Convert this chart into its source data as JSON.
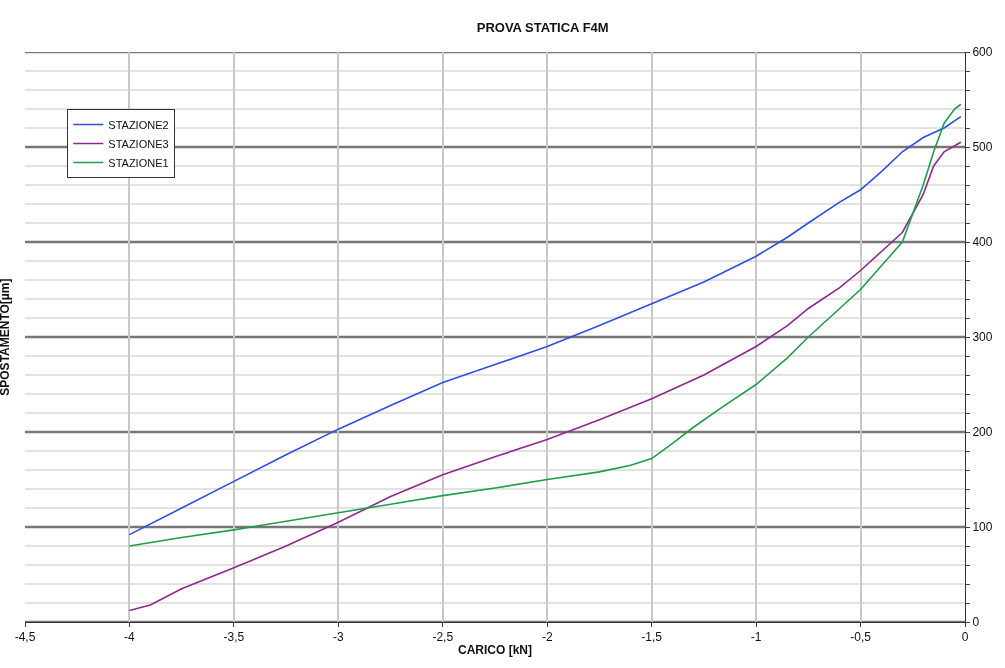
{
  "chart_data": {
    "type": "line",
    "title": "PROVA STATICA F4M",
    "xlabel": "CARICO [kN]",
    "ylabel": "SPOSTAMENTO[µm]",
    "xlim": [
      -4.5,
      0
    ],
    "xticks": [
      {
        "value": -4.5,
        "label": "-4,5"
      },
      -4,
      {
        "value": -3.5,
        "label": "-3,5"
      },
      -3,
      {
        "value": -2.5,
        "label": "-2,5"
      },
      -2,
      {
        "value": -1.5,
        "label": "-1,5"
      },
      -1,
      {
        "value": -0.5,
        "label": "-0,5"
      },
      0
    ],
    "ylim": [
      0,
      600
    ],
    "yticks": [
      0,
      {
        "value": 20,
        "label": null
      },
      {
        "value": 40,
        "label": null
      },
      {
        "value": 60,
        "label": null
      },
      {
        "value": 80,
        "label": null
      },
      100,
      {
        "value": 120,
        "label": null
      },
      {
        "value": 140,
        "label": null
      },
      {
        "value": 160,
        "label": null
      },
      {
        "value": 180,
        "label": null
      },
      200,
      {
        "value": 220,
        "label": null
      },
      {
        "value": 240,
        "label": null
      },
      {
        "value": 260,
        "label": null
      },
      {
        "value": 280,
        "label": null
      },
      300,
      {
        "value": 320,
        "label": null
      },
      {
        "value": 340,
        "label": null
      },
      {
        "value": 360,
        "label": null
      },
      {
        "value": 380,
        "label": null
      },
      400,
      {
        "value": 420,
        "label": null
      },
      {
        "value": 440,
        "label": null
      },
      {
        "value": 460,
        "label": null
      },
      {
        "value": 480,
        "label": null
      },
      500,
      {
        "value": 520,
        "label": null
      },
      {
        "value": 540,
        "label": null
      },
      {
        "value": 560,
        "label": null
      },
      {
        "value": 580,
        "label": null
      },
      600
    ],
    "grid": true,
    "legend": "top left",
    "marker": "none",
    "line_style": "solid",
    "series": [
      {
        "name": "STAZIONE2",
        "color": "#2e4fe0",
        "x": [
          -4,
          -3.75,
          -3.5,
          -3.25,
          -3,
          -2.75,
          -2.5,
          -2.25,
          -2,
          -1.75,
          -1.5,
          -1.25,
          -1,
          -0.85,
          -0.75,
          -0.6,
          -0.5,
          -0.4,
          -0.3,
          -0.2,
          -0.1,
          -0.02
        ],
        "values": [
          92,
          120,
          148,
          176,
          203,
          228,
          252,
          271,
          290,
          312,
          335,
          358,
          385,
          405,
          420,
          442,
          455,
          474,
          495,
          510,
          520,
          532
        ]
      },
      {
        "name": "STAZIONE3",
        "color": "#8b2a8e",
        "x": [
          -4,
          -3.9,
          -3.75,
          -3.5,
          -3.25,
          -3,
          -2.75,
          -2.5,
          -2.25,
          -2,
          -1.75,
          -1.5,
          -1.25,
          -1,
          -0.85,
          -0.75,
          -0.6,
          -0.5,
          -0.4,
          -0.3,
          -0.2,
          -0.15,
          -0.1,
          -0.02
        ],
        "values": [
          12,
          18,
          35,
          57,
          80,
          105,
          132,
          155,
          174,
          192,
          213,
          235,
          260,
          290,
          312,
          330,
          352,
          370,
          390,
          410,
          450,
          480,
          495,
          505
        ]
      },
      {
        "name": "STAZIONE1",
        "color": "#1f9e4a",
        "x": [
          -4,
          -3.75,
          -3.5,
          -3.25,
          -3,
          -2.75,
          -2.5,
          -2.25,
          -2,
          -1.75,
          -1.6,
          -1.5,
          -1.4,
          -1.3,
          -1.15,
          -1,
          -0.85,
          -0.75,
          -0.6,
          -0.5,
          -0.4,
          -0.3,
          -0.2,
          -0.15,
          -0.1,
          -0.05,
          -0.02
        ],
        "values": [
          80,
          89,
          97,
          106,
          115,
          124,
          133,
          141,
          150,
          158,
          165,
          172,
          188,
          205,
          228,
          250,
          278,
          300,
          330,
          350,
          375,
          400,
          460,
          495,
          525,
          540,
          545
        ]
      }
    ]
  }
}
